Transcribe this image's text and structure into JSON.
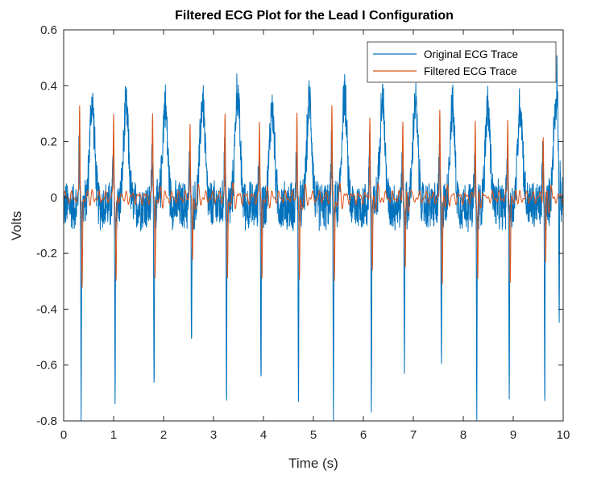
{
  "chart_data": {
    "type": "line",
    "title": "Filtered ECG Plot for the Lead I Configuration",
    "xlabel": "Time (s)",
    "ylabel": "Volts",
    "xlim": [
      0,
      10
    ],
    "ylim": [
      -0.8,
      0.6
    ],
    "xticks": [
      0,
      1,
      2,
      3,
      4,
      5,
      6,
      7,
      8,
      9,
      10
    ],
    "yticks": [
      -0.8,
      -0.6,
      -0.4,
      -0.2,
      0,
      0.2,
      0.4,
      0.6
    ],
    "xtick_labels": [
      "0",
      "1",
      "2",
      "3",
      "4",
      "5",
      "6",
      "7",
      "8",
      "9",
      "10"
    ],
    "ytick_labels": [
      "-0.8",
      "-0.6",
      "-0.4",
      "-0.2",
      "0",
      "0.2",
      "0.4",
      "0.6"
    ],
    "grid": false,
    "legend_position": "top-right",
    "series": [
      {
        "name": "Original ECG Trace",
        "color": "#0072BD",
        "beats": [
          {
            "r_time": 0.35,
            "q_min": -0.78,
            "r_peak": 0.19,
            "t_peak": 0.42
          },
          {
            "r_time": 1.03,
            "q_min": -0.73,
            "r_peak": 0.17,
            "t_peak": 0.4
          },
          {
            "r_time": 1.81,
            "q_min": -0.69,
            "r_peak": 0.17,
            "t_peak": 0.41
          },
          {
            "r_time": 2.56,
            "q_min": -0.57,
            "r_peak": 0.16,
            "t_peak": 0.43
          },
          {
            "r_time": 3.26,
            "q_min": -0.77,
            "r_peak": 0.19,
            "t_peak": 0.46
          },
          {
            "r_time": 3.95,
            "q_min": -0.67,
            "r_peak": 0.18,
            "t_peak": 0.4
          },
          {
            "r_time": 4.7,
            "q_min": -0.76,
            "r_peak": 0.19,
            "t_peak": 0.43
          },
          {
            "r_time": 5.4,
            "q_min": -0.78,
            "r_peak": 0.2,
            "t_peak": 0.45
          },
          {
            "r_time": 6.16,
            "q_min": -0.78,
            "r_peak": 0.21,
            "t_peak": 0.44
          },
          {
            "r_time": 6.82,
            "q_min": -0.57,
            "r_peak": 0.17,
            "t_peak": 0.42
          },
          {
            "r_time": 7.56,
            "q_min": -0.61,
            "r_peak": 0.16,
            "t_peak": 0.4
          },
          {
            "r_time": 8.27,
            "q_min": -0.76,
            "r_peak": 0.19,
            "t_peak": 0.4
          },
          {
            "r_time": 8.92,
            "q_min": -0.7,
            "r_peak": 0.2,
            "t_peak": 0.41
          },
          {
            "r_time": 9.63,
            "q_min": -0.74,
            "r_peak": 0.19,
            "t_peak": 0.4
          },
          {
            "r_time": 9.92,
            "q_min": -0.54,
            "r_peak": 0.18,
            "t_peak": 0.17
          }
        ],
        "baseline_range": [
          -0.15,
          0.05
        ]
      },
      {
        "name": "Filtered ECG Trace",
        "color": "#D95319",
        "beats": [
          {
            "r_time": 0.35,
            "r_peak": 0.33,
            "s_min": -0.33
          },
          {
            "r_time": 1.03,
            "r_peak": 0.3,
            "s_min": -0.31
          },
          {
            "r_time": 1.81,
            "r_peak": 0.3,
            "s_min": -0.29
          },
          {
            "r_time": 2.56,
            "r_peak": 0.28,
            "s_min": -0.26
          },
          {
            "r_time": 3.26,
            "r_peak": 0.3,
            "s_min": -0.3
          },
          {
            "r_time": 3.95,
            "r_peak": 0.27,
            "s_min": -0.29
          },
          {
            "r_time": 4.7,
            "r_peak": 0.32,
            "s_min": -0.33
          },
          {
            "r_time": 5.4,
            "r_peak": 0.33,
            "s_min": -0.31
          },
          {
            "r_time": 6.16,
            "r_peak": 0.31,
            "s_min": -0.29
          },
          {
            "r_time": 6.82,
            "r_peak": 0.28,
            "s_min": -0.28
          },
          {
            "r_time": 7.56,
            "r_peak": 0.3,
            "s_min": -0.3
          },
          {
            "r_time": 8.27,
            "r_peak": 0.28,
            "s_min": -0.31
          },
          {
            "r_time": 8.92,
            "r_peak": 0.29,
            "s_min": -0.31
          },
          {
            "r_time": 9.63,
            "r_peak": 0.23,
            "s_min": -0.25
          }
        ],
        "baseline_range": [
          -0.03,
          0.03
        ]
      }
    ]
  }
}
